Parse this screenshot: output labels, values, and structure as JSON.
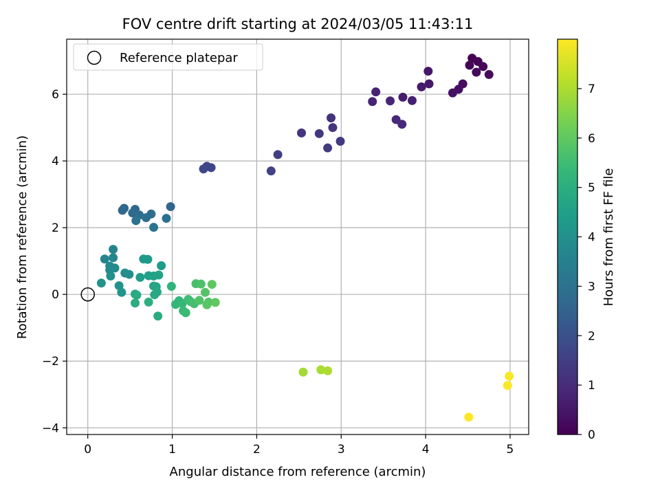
{
  "chart_data": {
    "type": "scatter",
    "title": "FOV centre drift starting at 2024/03/05 11:43:11",
    "xlabel": "Angular distance from reference (arcmin)",
    "ylabel": "Rotation from reference (arcmin)",
    "xlim": [
      -0.25,
      5.22
    ],
    "ylim": [
      -4.2,
      7.65
    ],
    "xticks": [
      0,
      1,
      2,
      3,
      4,
      5
    ],
    "xtick_labels": [
      "0",
      "1",
      "2",
      "3",
      "4",
      "5"
    ],
    "yticks": [
      -4,
      -2,
      0,
      2,
      4,
      6
    ],
    "ytick_labels": [
      "−4",
      "−2",
      "0",
      "2",
      "4",
      "6"
    ],
    "grid": true,
    "legend": {
      "placement": "top-left",
      "entries": [
        "Reference platepar"
      ]
    },
    "reference_point": {
      "x": 0,
      "y": 0,
      "label": "Reference platepar"
    },
    "colorbar": {
      "label": "Hours from first FF file",
      "colormap": "viridis",
      "range": [
        0,
        8.0
      ],
      "ticks": [
        0,
        1,
        2,
        3,
        4,
        5,
        6,
        7
      ],
      "tick_labels": [
        "0",
        "1",
        "2",
        "3",
        "4",
        "5",
        "6",
        "7"
      ]
    },
    "points": [
      {
        "x": 4.55,
        "y": 7.08,
        "hours": 0.0
      },
      {
        "x": 4.62,
        "y": 6.98,
        "hours": 0.05
      },
      {
        "x": 4.52,
        "y": 6.87,
        "hours": 0.1
      },
      {
        "x": 4.68,
        "y": 6.83,
        "hours": 0.15
      },
      {
        "x": 4.6,
        "y": 6.66,
        "hours": 0.2
      },
      {
        "x": 4.75,
        "y": 6.59,
        "hours": 0.25
      },
      {
        "x": 4.44,
        "y": 6.31,
        "hours": 0.3
      },
      {
        "x": 4.39,
        "y": 6.15,
        "hours": 0.35
      },
      {
        "x": 4.32,
        "y": 6.04,
        "hours": 0.4
      },
      {
        "x": 4.03,
        "y": 6.69,
        "hours": 0.5
      },
      {
        "x": 4.04,
        "y": 6.31,
        "hours": 0.55
      },
      {
        "x": 3.95,
        "y": 6.22,
        "hours": 0.6
      },
      {
        "x": 3.73,
        "y": 5.91,
        "hours": 0.65
      },
      {
        "x": 3.84,
        "y": 5.81,
        "hours": 0.7
      },
      {
        "x": 3.41,
        "y": 6.07,
        "hours": 0.75
      },
      {
        "x": 3.37,
        "y": 5.78,
        "hours": 0.8
      },
      {
        "x": 3.58,
        "y": 5.8,
        "hours": 0.85
      },
      {
        "x": 3.65,
        "y": 5.24,
        "hours": 0.9
      },
      {
        "x": 3.72,
        "y": 5.1,
        "hours": 0.95
      },
      {
        "x": 2.88,
        "y": 5.29,
        "hours": 1.15
      },
      {
        "x": 2.9,
        "y": 5.0,
        "hours": 1.2
      },
      {
        "x": 2.53,
        "y": 4.84,
        "hours": 1.25
      },
      {
        "x": 2.74,
        "y": 4.82,
        "hours": 1.3
      },
      {
        "x": 2.99,
        "y": 4.59,
        "hours": 1.35
      },
      {
        "x": 2.84,
        "y": 4.39,
        "hours": 1.4
      },
      {
        "x": 2.25,
        "y": 4.19,
        "hours": 1.5
      },
      {
        "x": 2.17,
        "y": 3.7,
        "hours": 1.55
      },
      {
        "x": 1.41,
        "y": 3.84,
        "hours": 1.65
      },
      {
        "x": 1.46,
        "y": 3.8,
        "hours": 1.7
      },
      {
        "x": 1.37,
        "y": 3.76,
        "hours": 1.75
      },
      {
        "x": 0.98,
        "y": 2.63,
        "hours": 2.55
      },
      {
        "x": 0.43,
        "y": 2.58,
        "hours": 2.6
      },
      {
        "x": 0.56,
        "y": 2.55,
        "hours": 2.65
      },
      {
        "x": 0.41,
        "y": 2.52,
        "hours": 2.7
      },
      {
        "x": 0.53,
        "y": 2.44,
        "hours": 2.75
      },
      {
        "x": 0.75,
        "y": 2.41,
        "hours": 2.8
      },
      {
        "x": 0.61,
        "y": 2.38,
        "hours": 2.85
      },
      {
        "x": 0.69,
        "y": 2.3,
        "hours": 2.9
      },
      {
        "x": 0.93,
        "y": 2.28,
        "hours": 2.95
      },
      {
        "x": 0.57,
        "y": 2.21,
        "hours": 3.0
      },
      {
        "x": 0.78,
        "y": 2.01,
        "hours": 3.05
      },
      {
        "x": 0.3,
        "y": 1.35,
        "hours": 3.6
      },
      {
        "x": 0.2,
        "y": 1.06,
        "hours": 3.65
      },
      {
        "x": 0.3,
        "y": 1.1,
        "hours": 3.7
      },
      {
        "x": 0.26,
        "y": 0.85,
        "hours": 3.75
      },
      {
        "x": 0.32,
        "y": 0.79,
        "hours": 3.8
      },
      {
        "x": 0.26,
        "y": 0.73,
        "hours": 3.85
      },
      {
        "x": 0.44,
        "y": 0.64,
        "hours": 3.9
      },
      {
        "x": 0.49,
        "y": 0.6,
        "hours": 3.95
      },
      {
        "x": 0.27,
        "y": 0.55,
        "hours": 4.0
      },
      {
        "x": 0.16,
        "y": 0.34,
        "hours": 4.05
      },
      {
        "x": 0.37,
        "y": 0.26,
        "hours": 4.1
      },
      {
        "x": 0.4,
        "y": 0.06,
        "hours": 4.15
      },
      {
        "x": 0.66,
        "y": 1.06,
        "hours": 4.3
      },
      {
        "x": 0.71,
        "y": 1.05,
        "hours": 4.35
      },
      {
        "x": 0.87,
        "y": 0.86,
        "hours": 4.4
      },
      {
        "x": 0.62,
        "y": 0.51,
        "hours": 4.45
      },
      {
        "x": 0.72,
        "y": 0.56,
        "hours": 4.5
      },
      {
        "x": 0.78,
        "y": 0.55,
        "hours": 4.55
      },
      {
        "x": 0.84,
        "y": 0.58,
        "hours": 4.6
      },
      {
        "x": 0.78,
        "y": 0.25,
        "hours": 4.65
      },
      {
        "x": 0.81,
        "y": 0.23,
        "hours": 4.7
      },
      {
        "x": 0.82,
        "y": 0.07,
        "hours": 4.75
      },
      {
        "x": 0.79,
        "y": -0.01,
        "hours": 4.8
      },
      {
        "x": 0.56,
        "y": 0.01,
        "hours": 4.85
      },
      {
        "x": 0.58,
        "y": -0.02,
        "hours": 4.9
      },
      {
        "x": 0.56,
        "y": -0.26,
        "hours": 4.95
      },
      {
        "x": 0.72,
        "y": -0.23,
        "hours": 5.0
      },
      {
        "x": 0.83,
        "y": -0.65,
        "hours": 4.9
      },
      {
        "x": 0.99,
        "y": 0.24,
        "hours": 5.2
      },
      {
        "x": 1.08,
        "y": -0.19,
        "hours": 5.25
      },
      {
        "x": 1.04,
        "y": -0.3,
        "hours": 5.3
      },
      {
        "x": 1.12,
        "y": -0.27,
        "hours": 5.35
      },
      {
        "x": 1.13,
        "y": -0.49,
        "hours": 5.4
      },
      {
        "x": 1.16,
        "y": -0.55,
        "hours": 5.45
      },
      {
        "x": 1.19,
        "y": -0.15,
        "hours": 5.5
      },
      {
        "x": 1.22,
        "y": -0.22,
        "hours": 5.55
      },
      {
        "x": 1.26,
        "y": -0.28,
        "hours": 5.6
      },
      {
        "x": 1.28,
        "y": 0.32,
        "hours": 5.65
      },
      {
        "x": 1.34,
        "y": 0.31,
        "hours": 5.7
      },
      {
        "x": 1.32,
        "y": -0.18,
        "hours": 5.75
      },
      {
        "x": 1.39,
        "y": 0.06,
        "hours": 5.8
      },
      {
        "x": 1.43,
        "y": -0.23,
        "hours": 5.85
      },
      {
        "x": 1.41,
        "y": -0.31,
        "hours": 5.9
      },
      {
        "x": 1.47,
        "y": 0.3,
        "hours": 5.95
      },
      {
        "x": 1.51,
        "y": -0.24,
        "hours": 6.0
      },
      {
        "x": 2.55,
        "y": -2.33,
        "hours": 6.9
      },
      {
        "x": 2.76,
        "y": -2.26,
        "hours": 6.95
      },
      {
        "x": 2.84,
        "y": -2.29,
        "hours": 7.0
      },
      {
        "x": 4.99,
        "y": -2.45,
        "hours": 7.95
      },
      {
        "x": 4.97,
        "y": -2.73,
        "hours": 7.98
      },
      {
        "x": 4.51,
        "y": -3.68,
        "hours": 8.0
      }
    ]
  }
}
